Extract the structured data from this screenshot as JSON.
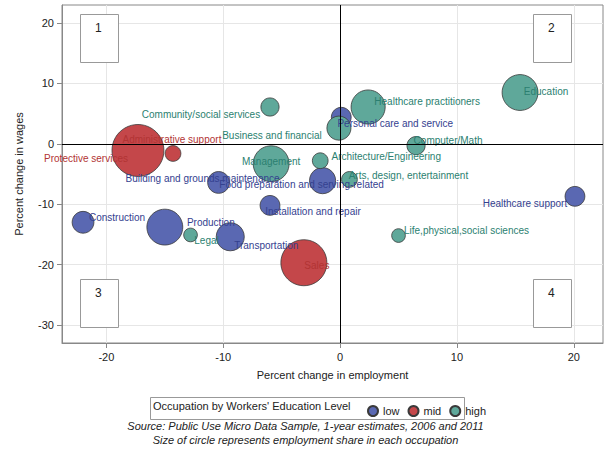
{
  "chart_data": {
    "type": "scatter",
    "x_label": "Percent change in employment",
    "y_label": "Percent change in wages",
    "xlim": [
      -23.8,
      22.5
    ],
    "xticks": [
      -20,
      -10,
      0,
      10,
      20
    ],
    "ylim": [
      -33,
      23
    ],
    "yticks": [
      -30,
      -20,
      -10,
      0,
      10,
      20
    ],
    "grid": true,
    "legend": "bottom",
    "legend_title": "Occupation by Workers' Education Level",
    "marker": "circle",
    "reference_lines": {
      "x": 0,
      "y": 0
    },
    "quadrant_labels": [
      "1",
      "2",
      "3",
      "4"
    ],
    "footnotes": [
      "Source: Public Use Micro Data Sample, 1-year estimates, 2006 and 2011",
      "Size of circle represents employment share in each occupation"
    ],
    "series": [
      {
        "name": "low",
        "color": "#5a68b2",
        "labels": [
          "Construction",
          "Personal care and service",
          "Food preparation and serving-related",
          "Building and grounds maintenance",
          "Installation and repair",
          "Healthcare support",
          "Production",
          "Transportation"
        ],
        "x": [
          -22,
          0.1,
          -1.5,
          -10.4,
          -6.0,
          20.1,
          -15.0,
          -9.4
        ],
        "y": [
          -13,
          4.4,
          -6.1,
          -6.4,
          -10.2,
          -8.7,
          -13.8,
          -15.4
        ],
        "sizes": [
          2.3,
          1.9,
          3.3,
          2.3,
          1.9,
          1.9,
          6.2,
          3.8
        ]
      },
      {
        "name": "mid",
        "color": "#c4474a",
        "labels": [
          "Administrative support",
          "Protective services",
          "Sales"
        ],
        "x": [
          -17.3,
          -14.3,
          -3.1
        ],
        "y": [
          -1.1,
          -1.6,
          -19.7
        ],
        "sizes": [
          13,
          1.2,
          10.2
        ]
      },
      {
        "name": "high",
        "color": "#5fa89a",
        "labels": [
          "Education",
          "Healthcare practitioners",
          "Community/social services",
          "Business and financial",
          "Computer/Math",
          "Management",
          "Architecture/Engineering",
          "Arts, design, entertainment",
          "Legal",
          "Life,physical,social sciences"
        ],
        "x": [
          15.4,
          2.4,
          -6.0,
          -0.1,
          6.5,
          -5.9,
          -1.7,
          0.8,
          -12.8,
          5.0
        ],
        "y": [
          8.5,
          6.1,
          6.1,
          2.6,
          -0.3,
          -3.3,
          -2.8,
          -5.9,
          -15.1,
          -15.2
        ],
        "sizes": [
          6.2,
          5.6,
          1.6,
          2.8,
          1.6,
          6.2,
          1.2,
          1.2,
          0.9,
          0.9
        ]
      }
    ]
  }
}
